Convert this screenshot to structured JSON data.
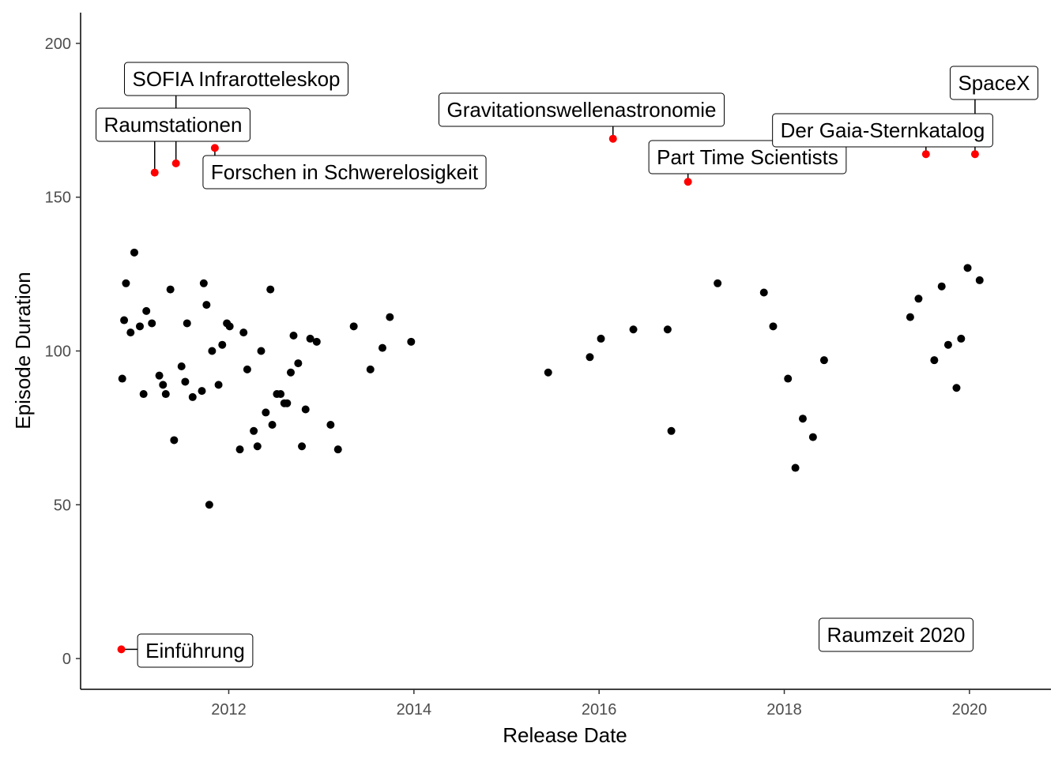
{
  "chart_data": {
    "type": "scatter",
    "title": "",
    "xlabel": "Release Date",
    "ylabel": "Episode Duration",
    "xlim": [
      2010.4,
      2020.88
    ],
    "ylim": [
      -10,
      210
    ],
    "x_ticks": [
      {
        "value": 2012,
        "label": "2012"
      },
      {
        "value": 2014,
        "label": "2014"
      },
      {
        "value": 2016,
        "label": "2016"
      },
      {
        "value": 2018,
        "label": "2018"
      },
      {
        "value": 2020,
        "label": "2020"
      }
    ],
    "y_ticks": [
      {
        "value": 0,
        "label": "0"
      },
      {
        "value": 50,
        "label": "50"
      },
      {
        "value": 100,
        "label": "100"
      },
      {
        "value": 150,
        "label": "150"
      },
      {
        "value": 200,
        "label": "200"
      }
    ],
    "grid": false,
    "legend": "none",
    "point_color": "#000000",
    "highlight_color": "#ff0000",
    "points": [
      {
        "x": 2010.85,
        "y": 91
      },
      {
        "x": 2010.87,
        "y": 110
      },
      {
        "x": 2010.89,
        "y": 122
      },
      {
        "x": 2010.94,
        "y": 106
      },
      {
        "x": 2010.98,
        "y": 132
      },
      {
        "x": 2011.04,
        "y": 108
      },
      {
        "x": 2011.08,
        "y": 86
      },
      {
        "x": 2011.11,
        "y": 113
      },
      {
        "x": 2011.17,
        "y": 109
      },
      {
        "x": 2011.25,
        "y": 92
      },
      {
        "x": 2011.29,
        "y": 89
      },
      {
        "x": 2011.32,
        "y": 86
      },
      {
        "x": 2011.37,
        "y": 120
      },
      {
        "x": 2011.41,
        "y": 71
      },
      {
        "x": 2011.49,
        "y": 95
      },
      {
        "x": 2011.53,
        "y": 90
      },
      {
        "x": 2011.55,
        "y": 109
      },
      {
        "x": 2011.61,
        "y": 85
      },
      {
        "x": 2011.71,
        "y": 87
      },
      {
        "x": 2011.73,
        "y": 122
      },
      {
        "x": 2011.76,
        "y": 115
      },
      {
        "x": 2011.79,
        "y": 50
      },
      {
        "x": 2011.82,
        "y": 100
      },
      {
        "x": 2011.89,
        "y": 89
      },
      {
        "x": 2011.93,
        "y": 102
      },
      {
        "x": 2011.98,
        "y": 109
      },
      {
        "x": 2012.01,
        "y": 108
      },
      {
        "x": 2012.12,
        "y": 68
      },
      {
        "x": 2012.16,
        "y": 106
      },
      {
        "x": 2012.2,
        "y": 94
      },
      {
        "x": 2012.27,
        "y": 74
      },
      {
        "x": 2012.31,
        "y": 69
      },
      {
        "x": 2012.35,
        "y": 100
      },
      {
        "x": 2012.4,
        "y": 80
      },
      {
        "x": 2012.45,
        "y": 120
      },
      {
        "x": 2012.47,
        "y": 76
      },
      {
        "x": 2012.52,
        "y": 86
      },
      {
        "x": 2012.56,
        "y": 86
      },
      {
        "x": 2012.6,
        "y": 83
      },
      {
        "x": 2012.63,
        "y": 83
      },
      {
        "x": 2012.67,
        "y": 93
      },
      {
        "x": 2012.7,
        "y": 105
      },
      {
        "x": 2012.75,
        "y": 96
      },
      {
        "x": 2012.79,
        "y": 69
      },
      {
        "x": 2012.83,
        "y": 81
      },
      {
        "x": 2012.88,
        "y": 104
      },
      {
        "x": 2012.95,
        "y": 103
      },
      {
        "x": 2013.1,
        "y": 76
      },
      {
        "x": 2013.18,
        "y": 68
      },
      {
        "x": 2013.35,
        "y": 108
      },
      {
        "x": 2013.53,
        "y": 94
      },
      {
        "x": 2013.66,
        "y": 101
      },
      {
        "x": 2013.74,
        "y": 111
      },
      {
        "x": 2013.97,
        "y": 103
      },
      {
        "x": 2015.45,
        "y": 93
      },
      {
        "x": 2015.9,
        "y": 98
      },
      {
        "x": 2016.02,
        "y": 104
      },
      {
        "x": 2016.37,
        "y": 107
      },
      {
        "x": 2016.74,
        "y": 107
      },
      {
        "x": 2016.78,
        "y": 74
      },
      {
        "x": 2017.28,
        "y": 122
      },
      {
        "x": 2017.78,
        "y": 119
      },
      {
        "x": 2017.88,
        "y": 108
      },
      {
        "x": 2018.04,
        "y": 91
      },
      {
        "x": 2018.12,
        "y": 62
      },
      {
        "x": 2018.2,
        "y": 78
      },
      {
        "x": 2018.31,
        "y": 72
      },
      {
        "x": 2018.43,
        "y": 97
      },
      {
        "x": 2019.36,
        "y": 111
      },
      {
        "x": 2019.45,
        "y": 117
      },
      {
        "x": 2019.62,
        "y": 97
      },
      {
        "x": 2019.7,
        "y": 121
      },
      {
        "x": 2019.77,
        "y": 102
      },
      {
        "x": 2019.86,
        "y": 88
      },
      {
        "x": 2019.91,
        "y": 104
      },
      {
        "x": 2019.98,
        "y": 127
      },
      {
        "x": 2020.11,
        "y": 123
      }
    ],
    "highlighted": [
      {
        "x": 2010.84,
        "y": 3,
        "label": "Einführung"
      },
      {
        "x": 2011.2,
        "y": 158,
        "label": "Raumstationen"
      },
      {
        "x": 2011.43,
        "y": 161,
        "label": "SOFIA Infrarotteleskop"
      },
      {
        "x": 2011.85,
        "y": 166,
        "label": "Forschen in Schwerelosigkeit"
      },
      {
        "x": 2016.15,
        "y": 169,
        "label": "Gravitationswellenastronomie"
      },
      {
        "x": 2016.96,
        "y": 155,
        "label": "Part Time Scientists"
      },
      {
        "x": 2019.53,
        "y": 164,
        "label": "Der Gaia-Sternkatalog"
      },
      {
        "x": 2020.06,
        "y": 164,
        "label": "SpaceX"
      },
      {
        "x": 2019.95,
        "y": 8,
        "label": "Raumzeit 2020"
      }
    ]
  }
}
